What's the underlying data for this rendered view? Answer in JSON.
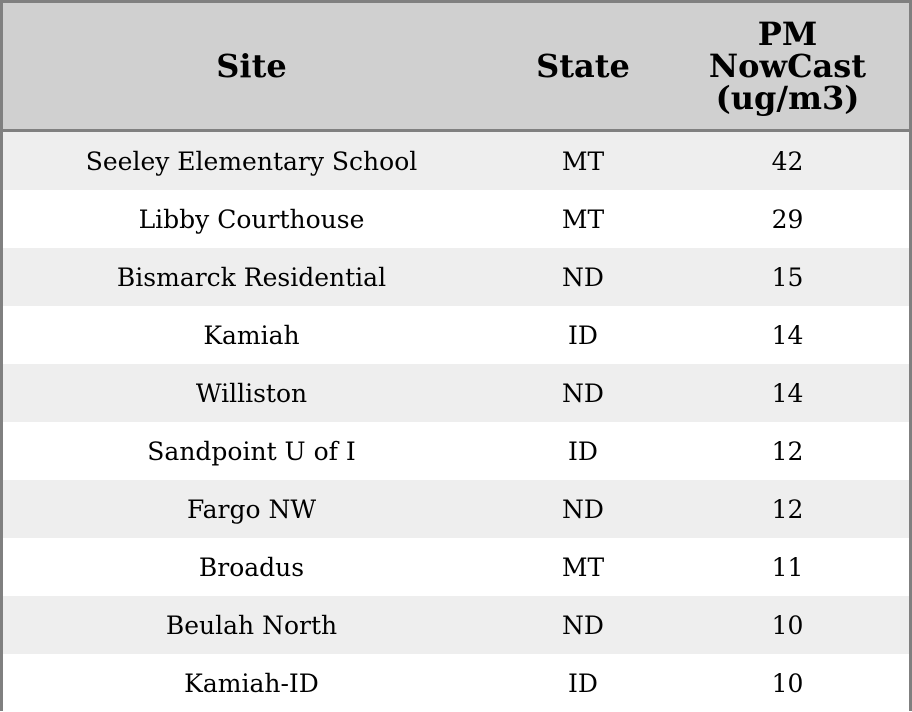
{
  "chart_data": {
    "type": "table",
    "columns": [
      "Site",
      "State",
      "PM NowCast (ug/m3)"
    ],
    "header_lines": [
      [
        "Site"
      ],
      [
        "State"
      ],
      [
        "PM",
        "NowCast",
        "(ug/m3)"
      ]
    ],
    "rows": [
      [
        "Seeley Elementary School",
        "MT",
        "42"
      ],
      [
        "Libby Courthouse",
        "MT",
        "29"
      ],
      [
        "Bismarck Residential",
        "ND",
        "15"
      ],
      [
        "Kamiah",
        "ID",
        "14"
      ],
      [
        "Williston",
        "ND",
        "14"
      ],
      [
        "Sandpoint U of I",
        "ID",
        "12"
      ],
      [
        "Fargo NW",
        "ND",
        "12"
      ],
      [
        "Broadus",
        "MT",
        "11"
      ],
      [
        "Beulah North",
        "ND",
        "10"
      ],
      [
        "Kamiah-ID",
        "ID",
        "10"
      ]
    ],
    "colors": {
      "header_bg": "#d0d0d0",
      "row_alt_bg": "#eeeeee",
      "border": "#808080"
    }
  }
}
